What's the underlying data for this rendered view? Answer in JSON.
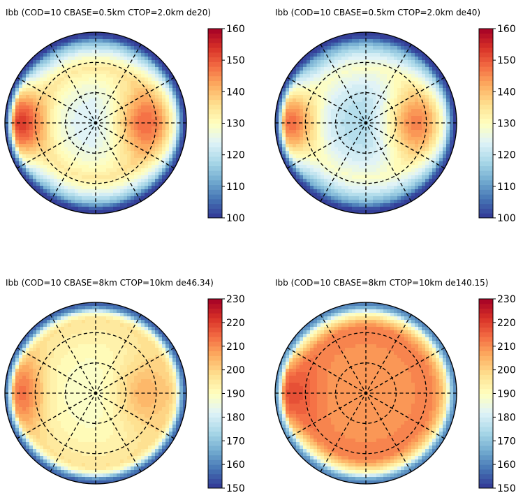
{
  "chart_data": [
    {
      "type": "heatmap",
      "subtype": "polar",
      "title": "Ibb (COD=10 CBASE=0.5km CTOP=2.0km de20)",
      "colormap": "RdYlBu_r",
      "colorbar": {
        "min": 100,
        "max": 160,
        "ticks": [
          100,
          110,
          120,
          130,
          140,
          150,
          160
        ],
        "tick_labels": [
          "100",
          "110",
          "120",
          "130",
          "140",
          "150",
          "160"
        ]
      },
      "field": {
        "center": 123,
        "limb": 100,
        "left_lobe": 153,
        "right_lobe": 148,
        "ring_radius": 0.6
      },
      "grid": {
        "rings": 3,
        "spokes": 12,
        "style": "dashed"
      }
    },
    {
      "type": "heatmap",
      "subtype": "polar",
      "title": "Ibb (COD=10 CBASE=0.5km CTOP=2.0km de40)",
      "colormap": "RdYlBu_r",
      "colorbar": {
        "min": 100,
        "max": 160,
        "ticks": [
          100,
          110,
          120,
          130,
          140,
          150,
          160
        ],
        "tick_labels": [
          "100",
          "110",
          "120",
          "130",
          "140",
          "150",
          "160"
        ]
      },
      "field": {
        "center": 118,
        "limb": 100,
        "left_lobe": 148,
        "right_lobe": 146,
        "ring_radius": 0.6
      },
      "grid": {
        "rings": 3,
        "spokes": 12,
        "style": "dashed"
      }
    },
    {
      "type": "heatmap",
      "subtype": "polar",
      "title": "Ibb (COD=10 CBASE=8km CTOP=10km de46.34)",
      "colormap": "RdYlBu_r",
      "colorbar": {
        "min": 150,
        "max": 230,
        "ticks": [
          150,
          160,
          170,
          180,
          190,
          200,
          210,
          220,
          230
        ],
        "tick_labels": [
          "150",
          "160",
          "170",
          "180",
          "190",
          "200",
          "210",
          "220",
          "230"
        ]
      },
      "field": {
        "center": 188,
        "limb": 155,
        "left_lobe": 213,
        "right_lobe": 205,
        "ring_radius": 0.8
      },
      "grid": {
        "rings": 3,
        "spokes": 12,
        "style": "dashed"
      }
    },
    {
      "type": "heatmap",
      "subtype": "polar",
      "title": "Ibb (COD=10 CBASE=8km CTOP=10km de140.15)",
      "colormap": "RdYlBu_r",
      "colorbar": {
        "min": 150,
        "max": 230,
        "ticks": [
          150,
          160,
          170,
          180,
          190,
          200,
          210,
          220,
          230
        ],
        "tick_labels": [
          "150",
          "160",
          "170",
          "180",
          "190",
          "200",
          "210",
          "220",
          "230"
        ]
      },
      "field": {
        "center": 208,
        "limb": 160,
        "left_lobe": 218,
        "right_lobe": 210,
        "ring_radius": 0.7
      },
      "grid": {
        "rings": 3,
        "spokes": 12,
        "style": "dashed"
      }
    }
  ]
}
